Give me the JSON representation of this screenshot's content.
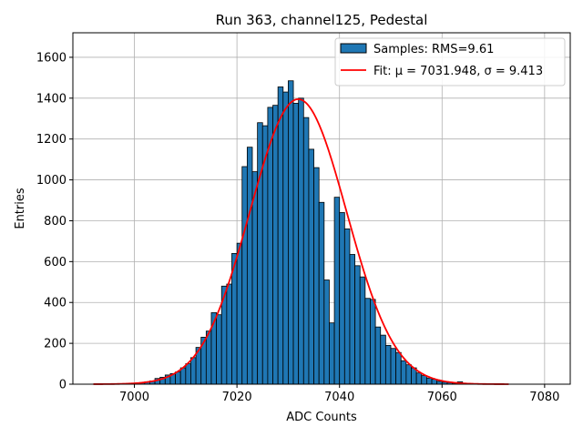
{
  "chart_data": {
    "type": "bar",
    "title": "Run 363, channel125, Pedestal",
    "xlabel": "ADC Counts",
    "ylabel": "Entries",
    "xlim": [
      6988,
      7085
    ],
    "ylim": [
      0,
      1720
    ],
    "xticks": [
      7000,
      7020,
      7040,
      7060,
      7080
    ],
    "yticks": [
      0,
      200,
      400,
      600,
      800,
      1000,
      1200,
      1400,
      1600
    ],
    "grid": true,
    "legend_position": "top-right",
    "bin_width": 1,
    "bins_start": 6999,
    "series": [
      {
        "name": "Samples: RMS=9.61",
        "kind": "histogram",
        "color": "#1f77b4",
        "edge_color": "#000000",
        "values": [
          2,
          4,
          8,
          12,
          16,
          28,
          34,
          45,
          52,
          60,
          80,
          100,
          130,
          180,
          230,
          260,
          350,
          340,
          480,
          490,
          640,
          690,
          1065,
          1160,
          1040,
          1280,
          1265,
          1355,
          1365,
          1455,
          1430,
          1485,
          1375,
          1400,
          1305,
          1150,
          1060,
          890,
          510,
          300,
          915,
          840,
          760,
          635,
          580,
          525,
          420,
          415,
          280,
          240,
          190,
          175,
          155,
          115,
          95,
          80,
          55,
          42,
          30,
          24,
          14,
          10,
          8,
          5,
          12,
          4,
          3,
          2,
          1
        ]
      },
      {
        "name": "Fit: μ = 7031.948, σ = 9.413",
        "kind": "gaussian-fit",
        "color": "#ff0000",
        "mu": 7031.948,
        "sigma": 9.413,
        "amplitude": 1395,
        "x_range": [
          6992,
          7073
        ]
      }
    ]
  }
}
